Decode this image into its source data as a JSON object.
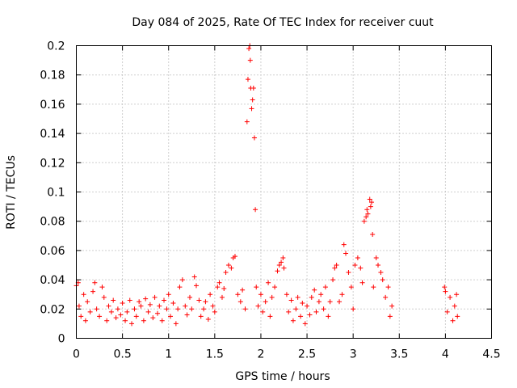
{
  "chart_data": {
    "type": "scatter",
    "title": "Day 084 of 2025, Rate Of TEC Index for receiver cuut",
    "xlabel": "GPS time / hours",
    "ylabel": "ROTI / TECUs",
    "xlim": [
      0,
      4.5
    ],
    "ylim": [
      0,
      0.2
    ],
    "x_ticks": [
      0,
      0.5,
      1,
      1.5,
      2,
      2.5,
      3,
      3.5,
      4,
      4.5
    ],
    "x_tick_labels": [
      "0",
      "0.5",
      "1",
      "1.5",
      "2",
      "2.5",
      "3",
      "3.5",
      "4",
      "4.5"
    ],
    "y_ticks": [
      0,
      0.02,
      0.04,
      0.06,
      0.08,
      0.1,
      0.12,
      0.14,
      0.16,
      0.18,
      0.2
    ],
    "y_tick_labels": [
      "0",
      "0.02",
      "0.04",
      "0.06",
      "0.08",
      "0.1",
      "0.12",
      "0.14",
      "0.16",
      "0.18",
      "0.2"
    ],
    "grid": true,
    "marker": "+",
    "color": "#ff0000",
    "series": [
      {
        "name": "ROTI",
        "points": [
          [
            0.0,
            0.036
          ],
          [
            0.02,
            0.038
          ],
          [
            0.03,
            0.022
          ],
          [
            0.05,
            0.015
          ],
          [
            0.08,
            0.03
          ],
          [
            0.1,
            0.012
          ],
          [
            0.12,
            0.025
          ],
          [
            0.15,
            0.018
          ],
          [
            0.18,
            0.032
          ],
          [
            0.2,
            0.038
          ],
          [
            0.22,
            0.02
          ],
          [
            0.25,
            0.015
          ],
          [
            0.28,
            0.035
          ],
          [
            0.3,
            0.028
          ],
          [
            0.33,
            0.012
          ],
          [
            0.35,
            0.022
          ],
          [
            0.38,
            0.018
          ],
          [
            0.4,
            0.026
          ],
          [
            0.43,
            0.014
          ],
          [
            0.45,
            0.02
          ],
          [
            0.48,
            0.016
          ],
          [
            0.5,
            0.024
          ],
          [
            0.53,
            0.012
          ],
          [
            0.55,
            0.018
          ],
          [
            0.58,
            0.026
          ],
          [
            0.6,
            0.01
          ],
          [
            0.63,
            0.02
          ],
          [
            0.65,
            0.015
          ],
          [
            0.68,
            0.025
          ],
          [
            0.7,
            0.022
          ],
          [
            0.73,
            0.012
          ],
          [
            0.75,
            0.027
          ],
          [
            0.78,
            0.018
          ],
          [
            0.8,
            0.023
          ],
          [
            0.83,
            0.014
          ],
          [
            0.85,
            0.028
          ],
          [
            0.88,
            0.017
          ],
          [
            0.9,
            0.022
          ],
          [
            0.93,
            0.012
          ],
          [
            0.95,
            0.026
          ],
          [
            0.98,
            0.02
          ],
          [
            1.0,
            0.03
          ],
          [
            1.02,
            0.015
          ],
          [
            1.05,
            0.024
          ],
          [
            1.08,
            0.01
          ],
          [
            1.1,
            0.02
          ],
          [
            1.12,
            0.035
          ],
          [
            1.15,
            0.04
          ],
          [
            1.18,
            0.022
          ],
          [
            1.2,
            0.016
          ],
          [
            1.23,
            0.028
          ],
          [
            1.25,
            0.02
          ],
          [
            1.28,
            0.042
          ],
          [
            1.3,
            0.036
          ],
          [
            1.33,
            0.026
          ],
          [
            1.35,
            0.015
          ],
          [
            1.38,
            0.02
          ],
          [
            1.4,
            0.025
          ],
          [
            1.43,
            0.013
          ],
          [
            1.45,
            0.03
          ],
          [
            1.48,
            0.022
          ],
          [
            1.5,
            0.018
          ],
          [
            1.53,
            0.035
          ],
          [
            1.55,
            0.038
          ],
          [
            1.58,
            0.028
          ],
          [
            1.6,
            0.034
          ],
          [
            1.62,
            0.045
          ],
          [
            1.65,
            0.05
          ],
          [
            1.68,
            0.048
          ],
          [
            1.7,
            0.055
          ],
          [
            1.72,
            0.056
          ],
          [
            1.75,
            0.03
          ],
          [
            1.78,
            0.025
          ],
          [
            1.8,
            0.033
          ],
          [
            1.83,
            0.02
          ],
          [
            1.85,
            0.148
          ],
          [
            1.86,
            0.177
          ],
          [
            1.87,
            0.198
          ],
          [
            1.88,
            0.2
          ],
          [
            1.885,
            0.19
          ],
          [
            1.89,
            0.171
          ],
          [
            1.9,
            0.157
          ],
          [
            1.91,
            0.163
          ],
          [
            1.92,
            0.171
          ],
          [
            1.93,
            0.137
          ],
          [
            1.94,
            0.088
          ],
          [
            1.95,
            0.035
          ],
          [
            1.97,
            0.022
          ],
          [
            2.0,
            0.03
          ],
          [
            2.02,
            0.018
          ],
          [
            2.05,
            0.025
          ],
          [
            2.08,
            0.038
          ],
          [
            2.1,
            0.015
          ],
          [
            2.12,
            0.028
          ],
          [
            2.15,
            0.035
          ],
          [
            2.18,
            0.046
          ],
          [
            2.2,
            0.05
          ],
          [
            2.22,
            0.052
          ],
          [
            2.24,
            0.055
          ],
          [
            2.25,
            0.048
          ],
          [
            2.28,
            0.03
          ],
          [
            2.3,
            0.018
          ],
          [
            2.33,
            0.026
          ],
          [
            2.35,
            0.012
          ],
          [
            2.38,
            0.02
          ],
          [
            2.4,
            0.028
          ],
          [
            2.43,
            0.015
          ],
          [
            2.45,
            0.024
          ],
          [
            2.48,
            0.01
          ],
          [
            2.5,
            0.022
          ],
          [
            2.53,
            0.016
          ],
          [
            2.55,
            0.028
          ],
          [
            2.58,
            0.033
          ],
          [
            2.6,
            0.018
          ],
          [
            2.63,
            0.025
          ],
          [
            2.65,
            0.03
          ],
          [
            2.68,
            0.02
          ],
          [
            2.7,
            0.035
          ],
          [
            2.73,
            0.015
          ],
          [
            2.75,
            0.025
          ],
          [
            2.78,
            0.04
          ],
          [
            2.8,
            0.048
          ],
          [
            2.82,
            0.05
          ],
          [
            2.85,
            0.025
          ],
          [
            2.88,
            0.03
          ],
          [
            2.9,
            0.064
          ],
          [
            2.92,
            0.058
          ],
          [
            2.95,
            0.045
          ],
          [
            2.98,
            0.035
          ],
          [
            3.0,
            0.02
          ],
          [
            3.02,
            0.05
          ],
          [
            3.05,
            0.055
          ],
          [
            3.08,
            0.048
          ],
          [
            3.1,
            0.038
          ],
          [
            3.12,
            0.08
          ],
          [
            3.14,
            0.083
          ],
          [
            3.15,
            0.088
          ],
          [
            3.16,
            0.085
          ],
          [
            3.18,
            0.095
          ],
          [
            3.19,
            0.09
          ],
          [
            3.2,
            0.093
          ],
          [
            3.21,
            0.071
          ],
          [
            3.22,
            0.035
          ],
          [
            3.25,
            0.055
          ],
          [
            3.27,
            0.05
          ],
          [
            3.3,
            0.045
          ],
          [
            3.32,
            0.04
          ],
          [
            3.35,
            0.028
          ],
          [
            3.38,
            0.035
          ],
          [
            3.4,
            0.015
          ],
          [
            3.42,
            0.022
          ],
          [
            3.99,
            0.035
          ],
          [
            4.0,
            0.032
          ],
          [
            4.02,
            0.018
          ],
          [
            4.05,
            0.028
          ],
          [
            4.08,
            0.012
          ],
          [
            4.1,
            0.022
          ],
          [
            4.12,
            0.03
          ],
          [
            4.13,
            0.015
          ]
        ]
      }
    ]
  }
}
